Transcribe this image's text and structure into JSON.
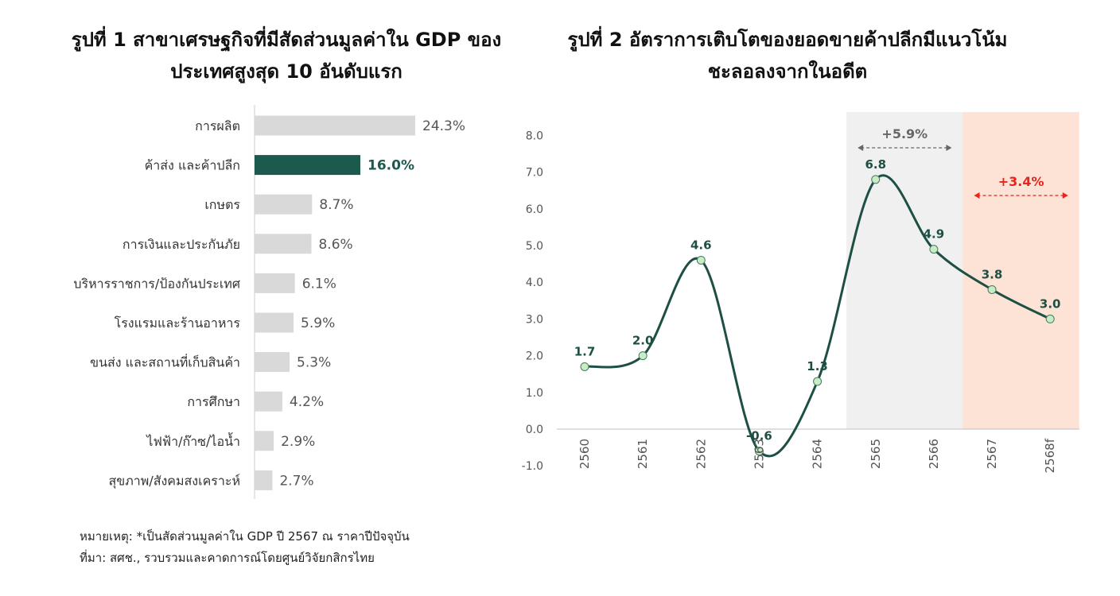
{
  "chart_data": [
    {
      "type": "bar",
      "orientation": "horizontal",
      "title": "รูปที่ 1 สาขาเศรษฐกิจที่มีสัดส่วนมูลค่าใน GDP ของประเทศสูงสุด 10 อันดับแรก",
      "categories": [
        "การผลิต",
        "ค้าส่ง และค้าปลีก",
        "เกษตร",
        "การเงินและประกันภัย",
        "บริหารราชการ/ป้องกันประเทศ",
        "โรงแรมและร้านอาหาร",
        "ขนส่ง และสถานที่เก็บสินค้า",
        "การศึกษา",
        "ไฟฟ้า/ก๊าซ/ไอน้ำ",
        "สุขภาพ/สังคมสงเคราะห์"
      ],
      "values": [
        24.3,
        16.0,
        8.7,
        8.6,
        6.1,
        5.9,
        5.3,
        4.2,
        2.9,
        2.7
      ],
      "value_labels": [
        "24.3%",
        "16.0%",
        "8.7%",
        "8.6%",
        "6.1%",
        "5.9%",
        "5.3%",
        "4.2%",
        "2.9%",
        "2.7%"
      ],
      "highlight_index": 1,
      "bar_color": "#d9d9d9",
      "highlight_color": "#1d5a4e",
      "xlim": [
        0,
        24.3
      ],
      "grid": false
    },
    {
      "type": "line",
      "title": "รูปที่ 2 อัตราการเติบโตของยอดขายค้าปลีกมีแนวโน้มชะลอลงจากในอดีต",
      "x": [
        "2560",
        "2561",
        "2562",
        "2563",
        "2564",
        "2565",
        "2566",
        "2567",
        "2568f"
      ],
      "values": [
        1.7,
        2.0,
        4.6,
        -0.6,
        1.3,
        6.8,
        4.9,
        3.8,
        3.0
      ],
      "value_labels": [
        "1.7",
        "2.0",
        "4.6",
        "-0.6",
        "1.3",
        "6.8",
        "4.9",
        "3.8",
        "3.0"
      ],
      "ylim": [
        -1.0,
        8.0
      ],
      "yticks": [
        "8.0",
        "7.0",
        "6.0",
        "5.0",
        "4.0",
        "3.0",
        "2.0",
        "1.0",
        "0.0",
        "-1.0"
      ],
      "ytick_values": [
        8,
        7,
        6,
        5,
        4,
        3,
        2,
        1,
        0,
        -1
      ],
      "line_color": "#1d4f44",
      "marker_color": "#c8ecc4",
      "grid": false,
      "shaded_regions": [
        {
          "from": "2565",
          "to": "2566",
          "color": "#f0f0f0",
          "label": "+5.9%",
          "label_color": "#666666"
        },
        {
          "from": "2567",
          "to": "2568f",
          "color": "#fde3d6",
          "label": "+3.4%",
          "label_color": "#e8231b"
        }
      ]
    }
  ],
  "notes": {
    "line1": "หมายเหตุ: *เป็นสัดส่วนมูลค่าใน GDP ปี 2567 ณ ราคาปีปัจจุบัน",
    "line2": "ที่มา: สศช., รวบรวมและคาดการณ์โดยศูนย์วิจัยกสิกรไทย"
  }
}
